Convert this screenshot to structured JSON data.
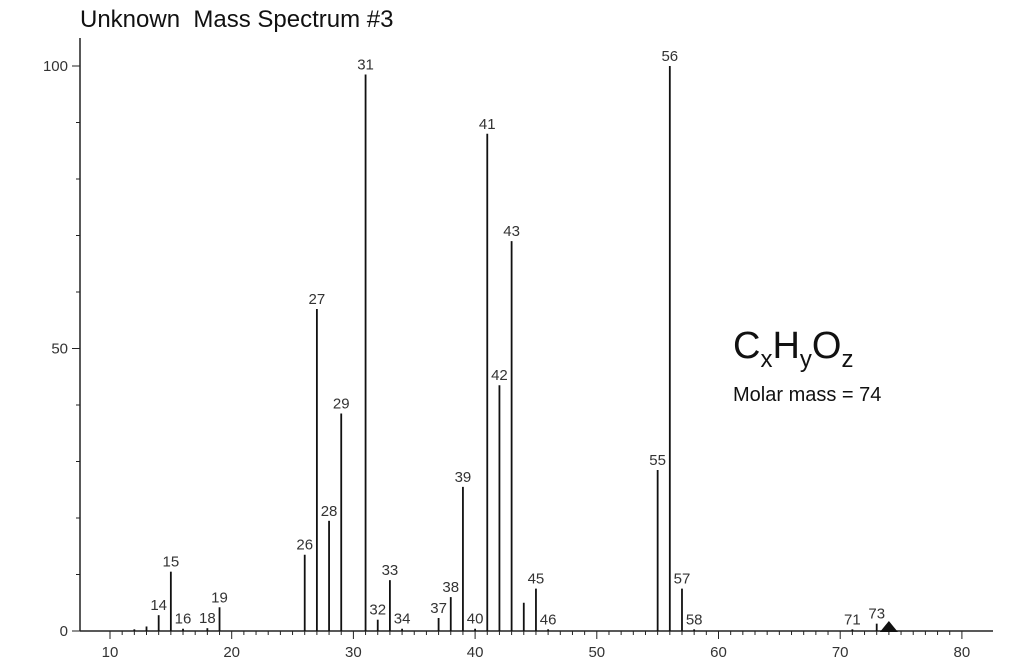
{
  "chart_data": {
    "type": "bar",
    "title": "Unknown  Mass Spectrum #3",
    "xlabel": "",
    "ylabel": "",
    "xlim": [
      7,
      82
    ],
    "ylim": [
      0,
      100
    ],
    "x_ticks": [
      10,
      20,
      30,
      40,
      50,
      60,
      70,
      80
    ],
    "y_ticks": [
      0,
      50,
      100
    ],
    "grid": false,
    "peaks": [
      {
        "mz": 12,
        "intensity": 0.3,
        "label": ""
      },
      {
        "mz": 13,
        "intensity": 0.8,
        "label": ""
      },
      {
        "mz": 14,
        "intensity": 2.8,
        "label": "14"
      },
      {
        "mz": 15,
        "intensity": 10.5,
        "label": "15"
      },
      {
        "mz": 16,
        "intensity": 0.4,
        "label": "16"
      },
      {
        "mz": 18,
        "intensity": 0.5,
        "label": "18"
      },
      {
        "mz": 19,
        "intensity": 4.2,
        "label": "19"
      },
      {
        "mz": 26,
        "intensity": 13.5,
        "label": "26"
      },
      {
        "mz": 27,
        "intensity": 57.0,
        "label": "27"
      },
      {
        "mz": 28,
        "intensity": 19.5,
        "label": "28"
      },
      {
        "mz": 29,
        "intensity": 38.5,
        "label": "29"
      },
      {
        "mz": 31,
        "intensity": 98.5,
        "label": "31"
      },
      {
        "mz": 32,
        "intensity": 2.0,
        "label": "32"
      },
      {
        "mz": 33,
        "intensity": 9.0,
        "label": "33"
      },
      {
        "mz": 34,
        "intensity": 0.4,
        "label": "34"
      },
      {
        "mz": 37,
        "intensity": 2.3,
        "label": "37"
      },
      {
        "mz": 38,
        "intensity": 6.0,
        "label": "38"
      },
      {
        "mz": 39,
        "intensity": 25.5,
        "label": "39"
      },
      {
        "mz": 40,
        "intensity": 0.4,
        "label": "40"
      },
      {
        "mz": 41,
        "intensity": 88.0,
        "label": "41"
      },
      {
        "mz": 42,
        "intensity": 43.5,
        "label": "42"
      },
      {
        "mz": 43,
        "intensity": 69.0,
        "label": "43"
      },
      {
        "mz": 44,
        "intensity": 5.0,
        "label": ""
      },
      {
        "mz": 45,
        "intensity": 7.5,
        "label": "45"
      },
      {
        "mz": 46,
        "intensity": 0.3,
        "label": "46"
      },
      {
        "mz": 55,
        "intensity": 28.5,
        "label": "55"
      },
      {
        "mz": 56,
        "intensity": 100.0,
        "label": "56"
      },
      {
        "mz": 57,
        "intensity": 7.5,
        "label": "57"
      },
      {
        "mz": 58,
        "intensity": 0.3,
        "label": "58"
      },
      {
        "mz": 71,
        "intensity": 0.3,
        "label": "71"
      },
      {
        "mz": 73,
        "intensity": 1.3,
        "label": "73"
      }
    ],
    "marker": {
      "mz": 74,
      "shape": "triangle"
    },
    "annotations": {
      "formula": {
        "C": "C",
        "x": "x",
        "H": "H",
        "y": "y",
        "O": "O",
        "z": "z"
      },
      "molar_mass": "Molar mass = 74"
    }
  }
}
